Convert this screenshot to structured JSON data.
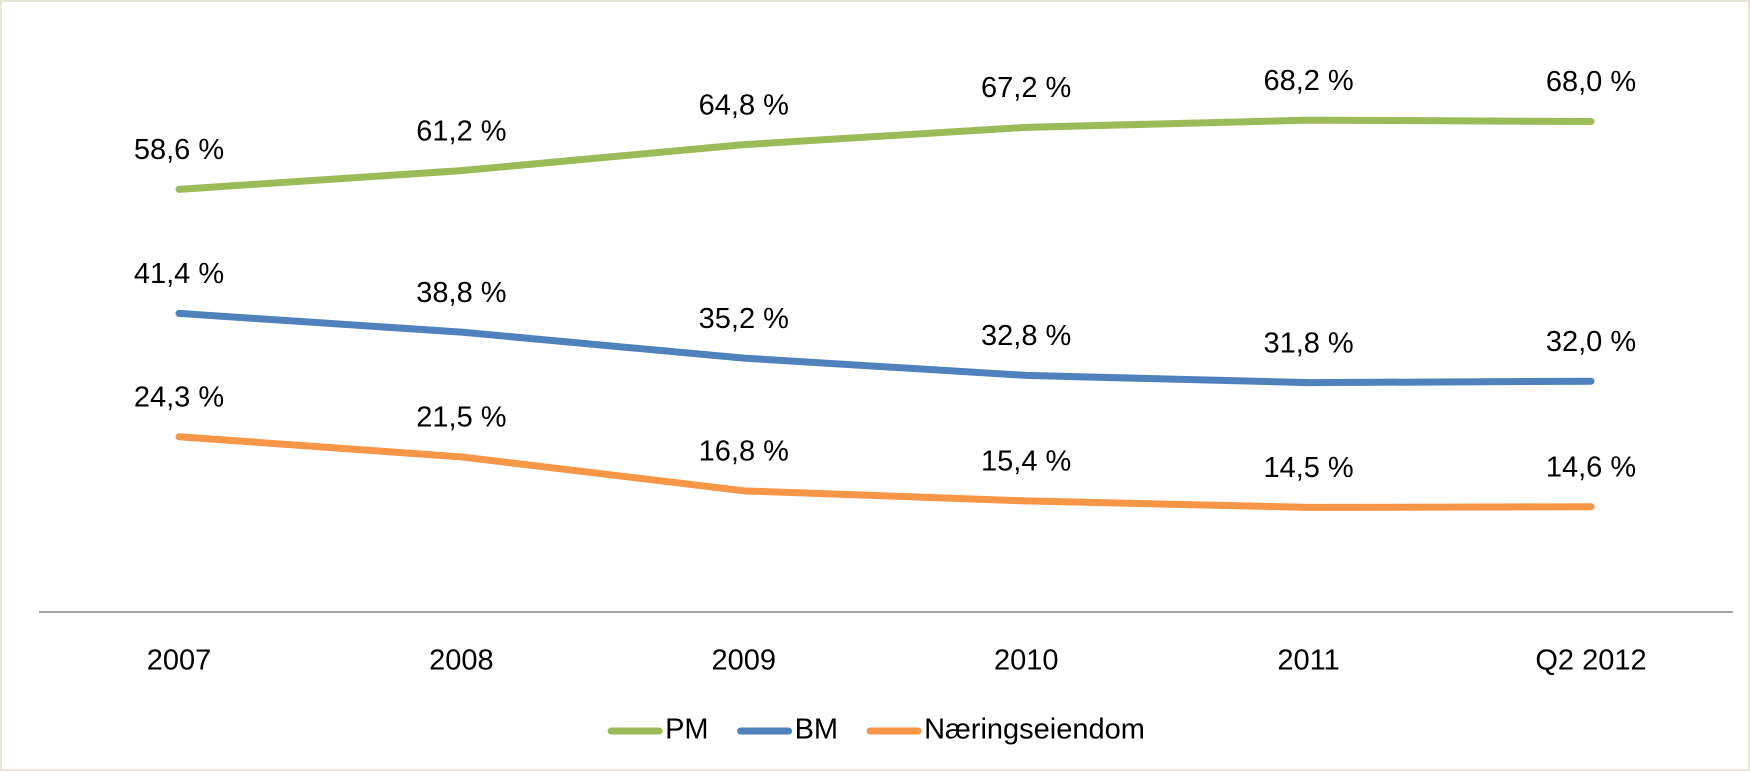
{
  "chart_data": {
    "type": "line",
    "categories": [
      "2007",
      "2008",
      "2009",
      "2010",
      "2011",
      "Q2 2012"
    ],
    "ylim": [
      0,
      80
    ],
    "legend": "bottom",
    "series": [
      {
        "name": "PM",
        "color": "#9bbb59",
        "values": [
          58.6,
          61.2,
          64.8,
          67.2,
          68.2,
          68.0
        ],
        "value_labels": [
          "58,6 %",
          "61,2 %",
          "64,8 %",
          "67,2 %",
          "68,2 %",
          "68,0 %"
        ]
      },
      {
        "name": "BM",
        "color": "#4f81bd",
        "values": [
          41.4,
          38.8,
          35.2,
          32.8,
          31.8,
          32.0
        ],
        "value_labels": [
          "41,4 %",
          "38,8 %",
          "35,2 %",
          "32,8 %",
          "31,8 %",
          "32,0 %"
        ]
      },
      {
        "name": "Næringseiendom",
        "color": "#f79646",
        "values": [
          24.3,
          21.5,
          16.8,
          15.4,
          14.5,
          14.6
        ],
        "value_labels": [
          "24,3 %",
          "21,5 %",
          "16,8 %",
          "15,4 %",
          "14,5 %",
          "14,6 %"
        ]
      }
    ]
  }
}
